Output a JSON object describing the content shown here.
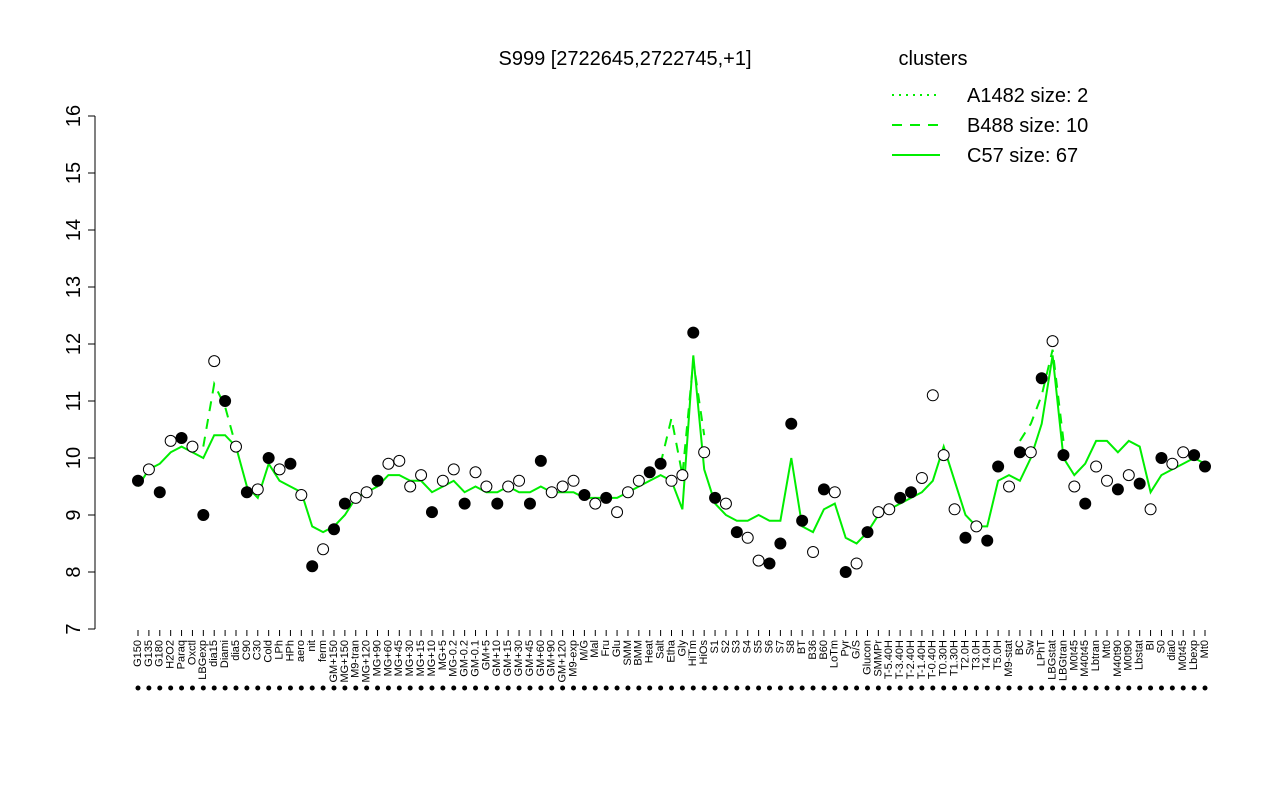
{
  "chart_data": {
    "type": "line_points",
    "title": "S999 [2722645,2722745,+1]",
    "legend_title": "clusters",
    "legend_color": "#00ee00",
    "categories": [
      "G150",
      "G135",
      "G180",
      "H2O2",
      "Paraq",
      "Oxctl",
      "LBGexp",
      "dia15",
      "Diami",
      "dia5",
      "C90",
      "C30",
      "Cold",
      "LPh",
      "HPh",
      "aero",
      "nit",
      "ferm",
      "GM+150",
      "MG+150",
      "M9-tran",
      "MG+120",
      "MG+90",
      "MG+60",
      "MG+45",
      "MG+30",
      "MG+15",
      "MG+10",
      "MG+5",
      "MG-0.2",
      "GM-0.2",
      "GM-0.1",
      "GM+5",
      "GM+10",
      "GM+15",
      "GM+30",
      "GM+45",
      "GM+60",
      "GM+90",
      "GM+120",
      "M9-exp",
      "M/G",
      "Mal",
      "Fru",
      "Glu",
      "SMM",
      "BMM",
      "Heat",
      "Salt",
      "Etha",
      "Gly",
      "HiTm",
      "HiOs",
      "S1",
      "S2",
      "S3",
      "S4",
      "S5",
      "S6",
      "S7",
      "S8",
      "BT",
      "B36",
      "B60",
      "LoTm",
      "Pyr",
      "G/S",
      "Glucon",
      "SMMPr",
      "T-5.40H",
      "T-3.40H",
      "T-2.40H",
      "T-1.40H",
      "T-0.40H",
      "T0.30H",
      "T1.30H",
      "T2.0H",
      "T3.0H",
      "T4.0H",
      "T5.0H",
      "M9-stat",
      "BC",
      "Sw",
      "LPhT",
      "LBGstat",
      "LBGtran",
      "M0t45",
      "M40t45",
      "Lbtran",
      "Mt0",
      "M40t90",
      "M0t90",
      "Lbstat",
      "BI",
      "S0",
      "dia0",
      "M0t45",
      "Lbexp",
      "Mt0"
    ],
    "values": [
      9.6,
      9.8,
      9.4,
      10.3,
      10.35,
      10.2,
      9.0,
      11.7,
      11.0,
      10.2,
      9.4,
      9.45,
      10.0,
      9.8,
      9.9,
      9.35,
      8.1,
      8.4,
      8.75,
      9.2,
      9.3,
      9.4,
      9.6,
      9.9,
      9.95,
      9.5,
      9.7,
      9.05,
      9.6,
      9.8,
      9.2,
      9.75,
      9.5,
      9.2,
      9.5,
      9.6,
      9.2,
      9.95,
      9.4,
      9.5,
      9.6,
      9.35,
      9.2,
      9.3,
      9.05,
      9.4,
      9.6,
      9.75,
      9.9,
      9.6,
      9.7,
      12.2,
      10.1,
      9.3,
      9.2,
      8.7,
      8.6,
      8.2,
      8.15,
      8.5,
      10.6,
      8.9,
      8.35,
      9.45,
      9.4,
      8.0,
      8.15,
      8.7,
      9.05,
      9.1,
      9.3,
      9.4,
      9.65,
      11.1,
      10.05,
      9.1,
      8.6,
      8.8,
      8.55,
      9.85,
      9.5,
      10.1,
      10.1,
      11.4,
      12.05,
      10.05,
      9.5,
      9.2,
      9.85,
      9.6,
      9.45,
      9.7,
      9.55,
      9.1,
      10.0,
      9.9,
      10.1,
      10.05,
      9.85
    ],
    "point_colors": [
      "black",
      "white",
      "black",
      "white",
      "black",
      "white",
      "black",
      "white",
      "black",
      "white",
      "black",
      "white",
      "black",
      "white",
      "black",
      "white",
      "black",
      "white",
      "black",
      "black",
      "white",
      "white",
      "black",
      "white",
      "white",
      "white",
      "white",
      "black",
      "white",
      "white",
      "black",
      "white",
      "white",
      "black",
      "white",
      "white",
      "black",
      "black",
      "white",
      "white",
      "white",
      "black",
      "white",
      "black",
      "white",
      "white",
      "white",
      "black",
      "black",
      "white",
      "white",
      "black",
      "white",
      "black",
      "white",
      "black",
      "white",
      "white",
      "black",
      "black",
      "black",
      "black",
      "white",
      "black",
      "white",
      "black",
      "white",
      "black",
      "white",
      "white",
      "black",
      "black",
      "white",
      "white",
      "white",
      "white",
      "black",
      "white",
      "black",
      "black",
      "white",
      "black",
      "white",
      "black",
      "white",
      "black",
      "white",
      "black",
      "white",
      "white",
      "black",
      "white",
      "black",
      "white",
      "black",
      "white",
      "white",
      "black",
      "black"
    ],
    "series": [
      {
        "name": "A1482 size: 2",
        "style": "dotted",
        "color": "#00ee00"
      },
      {
        "name": "B488 size: 10",
        "style": "dashed",
        "color": "#00ee00",
        "values": [
          null,
          null,
          null,
          null,
          null,
          null,
          10.2,
          11.3,
          10.9,
          10.2,
          null,
          null,
          null,
          null,
          null,
          null,
          null,
          null,
          null,
          null,
          null,
          null,
          null,
          null,
          null,
          null,
          null,
          null,
          null,
          null,
          null,
          null,
          null,
          null,
          null,
          null,
          null,
          null,
          null,
          null,
          null,
          null,
          null,
          null,
          null,
          null,
          null,
          null,
          9.9,
          10.7,
          9.7,
          11.7,
          10.4,
          null,
          null,
          null,
          null,
          null,
          null,
          null,
          null,
          null,
          null,
          null,
          null,
          null,
          null,
          null,
          null,
          null,
          null,
          null,
          null,
          null,
          null,
          null,
          null,
          null,
          null,
          null,
          null,
          10.3,
          10.6,
          11.1,
          11.9,
          10.3,
          null,
          null,
          null,
          null,
          null,
          null,
          null,
          null,
          null,
          null,
          null,
          null,
          null
        ]
      },
      {
        "name": "C57 size: 67",
        "style": "solid",
        "color": "#00ee00",
        "values": [
          9.5,
          9.8,
          9.9,
          10.1,
          10.2,
          10.1,
          10.0,
          10.4,
          10.4,
          10.2,
          9.5,
          9.3,
          9.9,
          9.6,
          9.5,
          9.4,
          8.8,
          8.7,
          8.8,
          9.0,
          9.3,
          9.4,
          9.5,
          9.7,
          9.7,
          9.6,
          9.6,
          9.4,
          9.5,
          9.6,
          9.4,
          9.5,
          9.4,
          9.4,
          9.5,
          9.4,
          9.4,
          9.5,
          9.4,
          9.4,
          9.4,
          9.3,
          9.3,
          9.3,
          9.3,
          9.4,
          9.5,
          9.6,
          9.7,
          9.6,
          9.1,
          11.8,
          9.8,
          9.2,
          9.0,
          8.9,
          8.9,
          9.0,
          8.9,
          8.9,
          10.0,
          8.8,
          8.7,
          9.1,
          9.2,
          8.6,
          8.5,
          8.7,
          9.0,
          9.1,
          9.2,
          9.3,
          9.4,
          9.6,
          10.2,
          9.6,
          9.0,
          8.8,
          8.8,
          9.6,
          9.7,
          9.6,
          10.0,
          10.6,
          11.8,
          10.0,
          9.7,
          9.9,
          10.3,
          10.3,
          10.1,
          10.3,
          10.2,
          9.4,
          9.7,
          9.8,
          9.9,
          10.0,
          9.9
        ]
      }
    ],
    "ylim": [
      7,
      16
    ],
    "yticks": [
      7,
      8,
      9,
      10,
      11,
      12,
      13,
      14,
      15,
      16
    ]
  }
}
